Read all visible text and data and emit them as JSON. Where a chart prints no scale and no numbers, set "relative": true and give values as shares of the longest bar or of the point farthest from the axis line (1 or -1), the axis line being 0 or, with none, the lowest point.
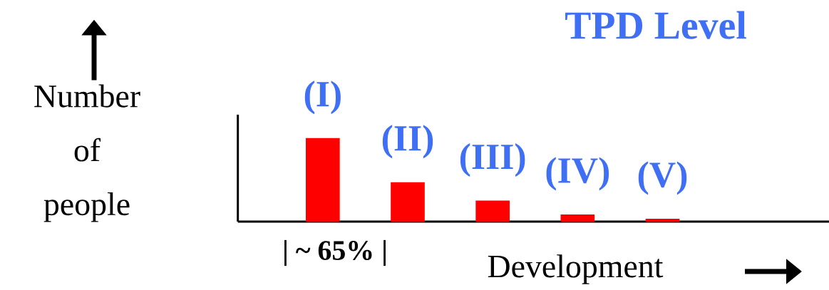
{
  "chart_data": {
    "type": "bar",
    "relative": true,
    "title": "TPD Level",
    "ylabel": "Number of people",
    "xlabel": "Development",
    "categories": [
      "(I)",
      "(II)",
      "(III)",
      "(IV)",
      "(V)"
    ],
    "values": [
      1,
      0.47,
      0.25,
      0.085,
      0.034
    ],
    "color": "#ff0000",
    "annotations": [
      "| ~ 65% |"
    ]
  }
}
